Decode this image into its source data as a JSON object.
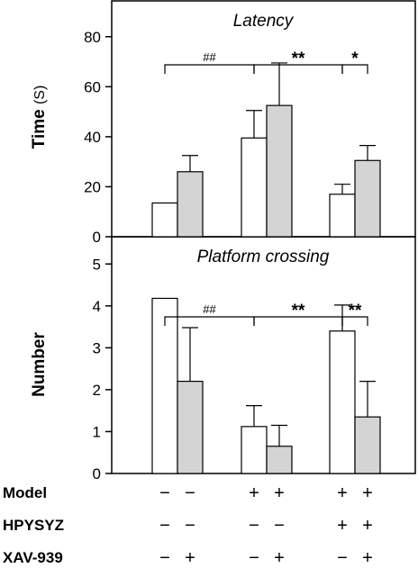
{
  "colors": {
    "white_bar": "#ffffff",
    "gray_bar": "#d4d4d4",
    "stroke": "#000000"
  },
  "chart_data": [
    {
      "type": "bar",
      "title": "Latency",
      "ylabel_main": "Time",
      "ylabel_unit": "(S)",
      "ylim": [
        0,
        90
      ],
      "yticks": [
        "0",
        "20",
        "40",
        "60",
        "80"
      ],
      "groups": [
        "1",
        "2",
        "3"
      ],
      "series": [
        {
          "values": [
            13.5,
            39.5,
            17
          ],
          "errors": [
            0,
            11,
            4
          ]
        },
        {
          "values": [
            26,
            52.5,
            30.5
          ],
          "errors": [
            6.5,
            17,
            6
          ]
        }
      ],
      "annotations": [
        {
          "label": "##",
          "from": [
            0,
            0
          ],
          "to": [
            1,
            0
          ]
        },
        {
          "label": "**",
          "from": [
            1,
            0
          ],
          "to": [
            2,
            0
          ]
        },
        {
          "label": "*",
          "from": [
            2,
            0
          ],
          "to": [
            2,
            1
          ]
        }
      ]
    },
    {
      "type": "bar",
      "title": "Platform crossing",
      "ylabel_main": "Number",
      "ylim": [
        0,
        5.5
      ],
      "yticks": [
        "0",
        "1",
        "2",
        "3",
        "4",
        "5"
      ],
      "groups": [
        "1",
        "2",
        "3"
      ],
      "series": [
        {
          "values": [
            4.18,
            1.12,
            3.4
          ],
          "errors": [
            0,
            0.5,
            0.62
          ]
        },
        {
          "values": [
            2.2,
            0.65,
            1.35
          ],
          "errors": [
            1.28,
            0.5,
            0.85
          ]
        }
      ],
      "annotations": [
        {
          "label": "##",
          "from": [
            0,
            0
          ],
          "to": [
            1,
            0
          ]
        },
        {
          "label": "**",
          "from": [
            1,
            0
          ],
          "to": [
            2,
            0
          ]
        },
        {
          "label": "**",
          "from": [
            2,
            0
          ],
          "to": [
            2,
            1
          ]
        }
      ]
    }
  ],
  "conditions": {
    "rows": [
      {
        "label": "Model",
        "signs": [
          "−",
          "−",
          "+",
          "+",
          "+",
          "+"
        ]
      },
      {
        "label": "HPYSYZ",
        "signs": [
          "−",
          "−",
          "−",
          "−",
          "+",
          "+"
        ]
      },
      {
        "label": "XAV-939",
        "signs": [
          "−",
          "+",
          "−",
          "+",
          "−",
          "+"
        ]
      }
    ]
  }
}
